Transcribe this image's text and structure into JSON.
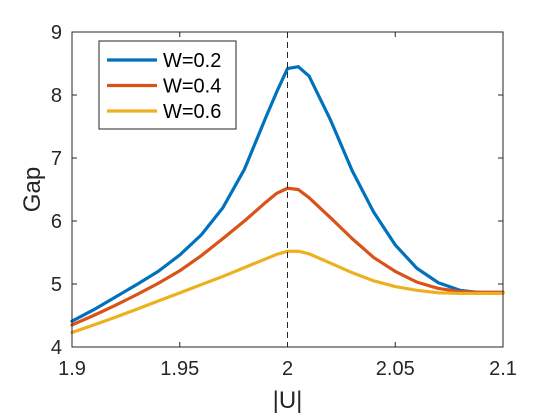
{
  "chart_data": {
    "type": "line",
    "title": "",
    "xlabel": "|U|",
    "ylabel": "Gap",
    "xlim": [
      1.9,
      2.1
    ],
    "ylim": [
      4,
      9
    ],
    "xticks": [
      1.9,
      1.95,
      2,
      2.05,
      2.1
    ],
    "xtick_labels": [
      "1.9",
      "1.95",
      "2",
      "2.05",
      "2.1"
    ],
    "yticks": [
      4,
      5,
      6,
      7,
      8,
      9
    ],
    "ytick_labels": [
      "4",
      "5",
      "6",
      "7",
      "8",
      "9"
    ],
    "grid": false,
    "legend_position": "top-left",
    "reference_line": {
      "x": 2,
      "style": "dashed",
      "color": "#262626"
    },
    "series": [
      {
        "name": "W=0.2",
        "color": "#0072BD",
        "x": [
          1.9,
          1.91,
          1.92,
          1.93,
          1.94,
          1.95,
          1.96,
          1.97,
          1.98,
          1.99,
          1.995,
          2.0,
          2.005,
          2.01,
          2.02,
          2.03,
          2.04,
          2.05,
          2.06,
          2.07,
          2.08,
          2.09,
          2.1
        ],
        "y": [
          4.41,
          4.59,
          4.79,
          4.99,
          5.2,
          5.46,
          5.78,
          6.21,
          6.82,
          7.65,
          8.05,
          8.42,
          8.45,
          8.3,
          7.6,
          6.8,
          6.14,
          5.62,
          5.25,
          5.02,
          4.9,
          4.86,
          4.86
        ]
      },
      {
        "name": "W=0.4",
        "color": "#D95319",
        "x": [
          1.9,
          1.91,
          1.92,
          1.93,
          1.94,
          1.95,
          1.96,
          1.97,
          1.98,
          1.99,
          1.995,
          2.0,
          2.005,
          2.01,
          2.02,
          2.03,
          2.04,
          2.05,
          2.06,
          2.07,
          2.08,
          2.09,
          2.1
        ],
        "y": [
          4.35,
          4.5,
          4.66,
          4.83,
          5.01,
          5.21,
          5.45,
          5.72,
          6.0,
          6.3,
          6.44,
          6.52,
          6.5,
          6.37,
          6.05,
          5.72,
          5.42,
          5.2,
          5.03,
          4.93,
          4.88,
          4.87,
          4.87
        ]
      },
      {
        "name": "W=0.6",
        "color": "#EDB120",
        "x": [
          1.9,
          1.91,
          1.92,
          1.93,
          1.94,
          1.95,
          1.96,
          1.97,
          1.98,
          1.99,
          1.995,
          2.0,
          2.005,
          2.01,
          2.02,
          2.03,
          2.04,
          2.05,
          2.06,
          2.07,
          2.08,
          2.09,
          2.1
        ],
        "y": [
          4.23,
          4.35,
          4.47,
          4.6,
          4.73,
          4.86,
          4.99,
          5.12,
          5.26,
          5.4,
          5.47,
          5.52,
          5.52,
          5.48,
          5.33,
          5.18,
          5.05,
          4.96,
          4.9,
          4.86,
          4.85,
          4.85,
          4.85
        ]
      }
    ]
  }
}
